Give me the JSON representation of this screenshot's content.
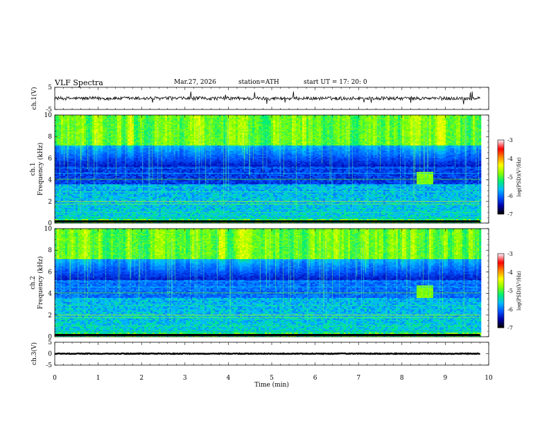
{
  "header": {
    "title": "VLF  Spectra",
    "date": "Mar.27, 2026",
    "station": "station=ATH",
    "start_ut": "start  UT  =    17: 20: 0"
  },
  "chart_data": [
    {
      "type": "line",
      "name": "ch1-waveform",
      "ylabel": "ch.1(V)",
      "ylim": [
        -5,
        5
      ],
      "yticks": [
        "5",
        "-5"
      ],
      "xlim": [
        0,
        9.8
      ],
      "level_v": 0,
      "noise_amplitude_v": 0.8
    },
    {
      "type": "heatmap",
      "name": "ch1-spectrogram",
      "ylabel_channel": "ch.1",
      "ylabel": "Frequency  (kHz)",
      "ylim": [
        0,
        10
      ],
      "yticks": [
        "0",
        "2",
        "4",
        "6",
        "8",
        "10"
      ],
      "xlim": [
        0,
        9.8
      ],
      "colorbar": {
        "label": "log(PSD)(V²/Hz)",
        "range": [
          -7,
          -3
        ],
        "ticks": [
          "-3",
          "-4",
          "-5",
          "-6",
          "-7"
        ]
      },
      "burst": {
        "t_start_min": 8.35,
        "t_end_min": 8.7,
        "f_low_khz": 3.6,
        "f_high_khz": 4.8
      }
    },
    {
      "type": "heatmap",
      "name": "ch2-spectrogram",
      "ylabel_channel": "ch.2",
      "ylabel": "Frequency  (kHz)",
      "ylim": [
        0,
        10
      ],
      "yticks": [
        "0",
        "2",
        "4",
        "6",
        "8",
        "10"
      ],
      "xlim": [
        0,
        9.8
      ],
      "colorbar": {
        "label": "log(PSD)(V²/Hz)",
        "range": [
          -7,
          -3
        ],
        "ticks": [
          "-3",
          "-4",
          "-5",
          "-6",
          "-7"
        ]
      },
      "burst": {
        "t_start_min": 8.35,
        "t_end_min": 8.7,
        "f_low_khz": 3.6,
        "f_high_khz": 4.8
      }
    },
    {
      "type": "line",
      "name": "ch3-waveform",
      "ylabel": "ch.3(V)",
      "ylim": [
        -5,
        5
      ],
      "yticks": [
        "5",
        "0",
        "-5"
      ],
      "xlim": [
        0,
        9.8
      ],
      "level_v": 0,
      "noise_amplitude_v": 0.15
    }
  ],
  "xaxis": {
    "label": "Time  (min)",
    "range": [
      0,
      10
    ],
    "ticks": [
      "0",
      "1",
      "2",
      "3",
      "4",
      "5",
      "6",
      "7",
      "8",
      "9",
      "10"
    ]
  },
  "colors": {
    "background": "#ffffff",
    "axis": "#000000",
    "colormap": [
      "#000000",
      "#0000aa",
      "#0055ff",
      "#00bbff",
      "#00ee77",
      "#88ff00",
      "#ffff00",
      "#ff8800",
      "#ff0000",
      "#ffe0e8"
    ]
  }
}
